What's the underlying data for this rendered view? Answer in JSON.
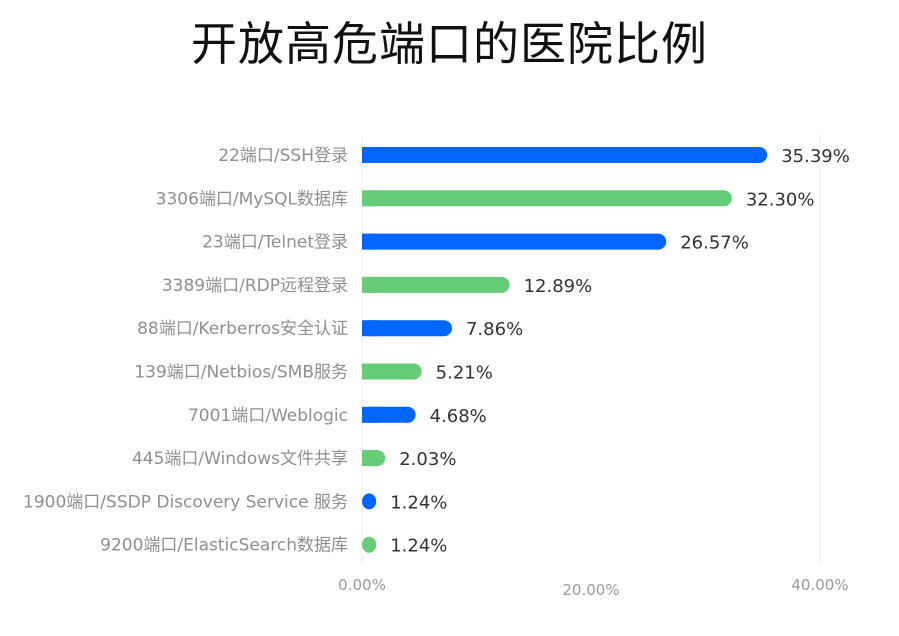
{
  "chart_data": {
    "type": "bar",
    "orientation": "horizontal",
    "title": "开放高危端口的医院比例",
    "categories": [
      "22端口/SSH登录",
      "3306端口/MySQL数据库",
      "23端口/Telnet登录",
      "3389端口/RDP远程登录",
      "88端口/Kerberros安全认证",
      "139端口/Netbios/SMB服务",
      "7001端口/Weblogic",
      "445端口/Windows文件共享",
      "1900端口/SSDP Discovery Service 服务",
      "9200端口/ElasticSearch数据库"
    ],
    "values": [
      35.39,
      32.3,
      26.57,
      12.89,
      7.86,
      5.21,
      4.68,
      2.03,
      1.24,
      1.24
    ],
    "value_labels": [
      "35.39%",
      "32.30%",
      "26.57%",
      "12.89%",
      "7.86%",
      "5.21%",
      "4.68%",
      "2.03%",
      "1.24%",
      "1.24%"
    ],
    "xlim": [
      0,
      40
    ],
    "x_ticks": [
      0,
      20,
      40
    ],
    "x_tick_labels": [
      "0.00%",
      "20.00%",
      "40.00%"
    ],
    "grid": "vertical gridlines at 0% and 40%",
    "colors": [
      "#0066ff",
      "#66cc77"
    ]
  }
}
